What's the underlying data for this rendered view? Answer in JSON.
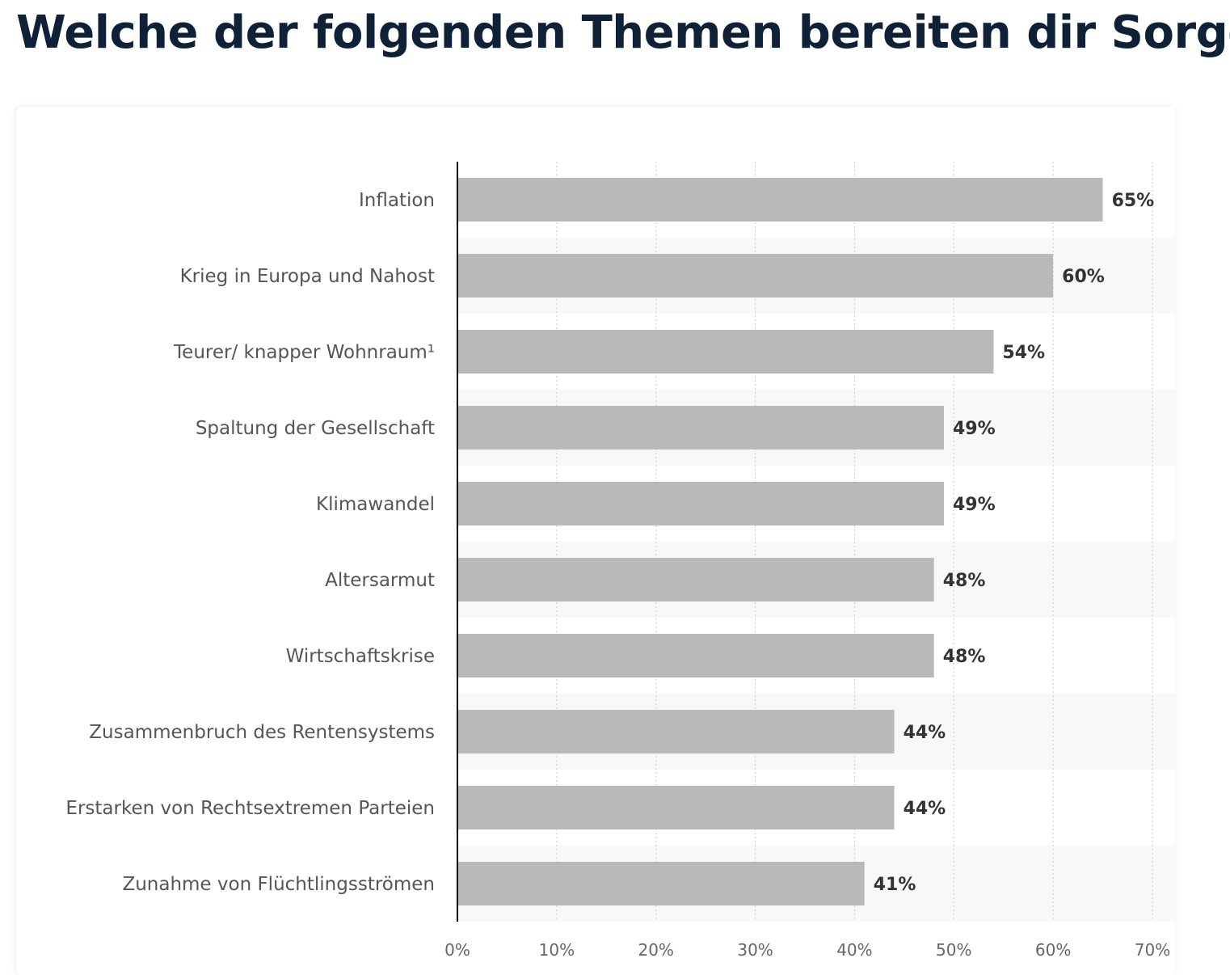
{
  "page": {
    "title": "Welche der folgenden Themen bereiten dir Sorge?"
  },
  "colors": {
    "bar": "#b9b9b9",
    "title": "#0f2137",
    "label": "#555555",
    "value": "#333333",
    "grid": "#cccccc",
    "stripe": "#f8f8f8",
    "axis": "#000000"
  },
  "chart_data": {
    "type": "bar",
    "orientation": "horizontal",
    "categories": [
      "Inflation",
      "Krieg in Europa und Nahost",
      "Teurer/ knapper Wohnraum¹",
      "Spaltung der Gesellschaft",
      "Klimawandel",
      "Altersarmut",
      "Wirtschaftskrise",
      "Zusammenbruch des Rentensystems",
      "Erstarken von Rechtsextremen Parteien",
      "Zunahme von Flüchtlingsströmen"
    ],
    "values": [
      65,
      60,
      54,
      49,
      49,
      48,
      48,
      44,
      44,
      41
    ],
    "value_labels": [
      "65%",
      "60%",
      "54%",
      "49%",
      "49%",
      "48%",
      "48%",
      "44%",
      "44%",
      "41%"
    ],
    "xlim": [
      0,
      70
    ],
    "xticks": [
      0,
      10,
      20,
      30,
      40,
      50,
      60,
      70
    ],
    "xtick_labels": [
      "0%",
      "10%",
      "20%",
      "30%",
      "40%",
      "50%",
      "60%",
      "70%"
    ],
    "grid": "vertical-dotted",
    "legend": "none"
  }
}
